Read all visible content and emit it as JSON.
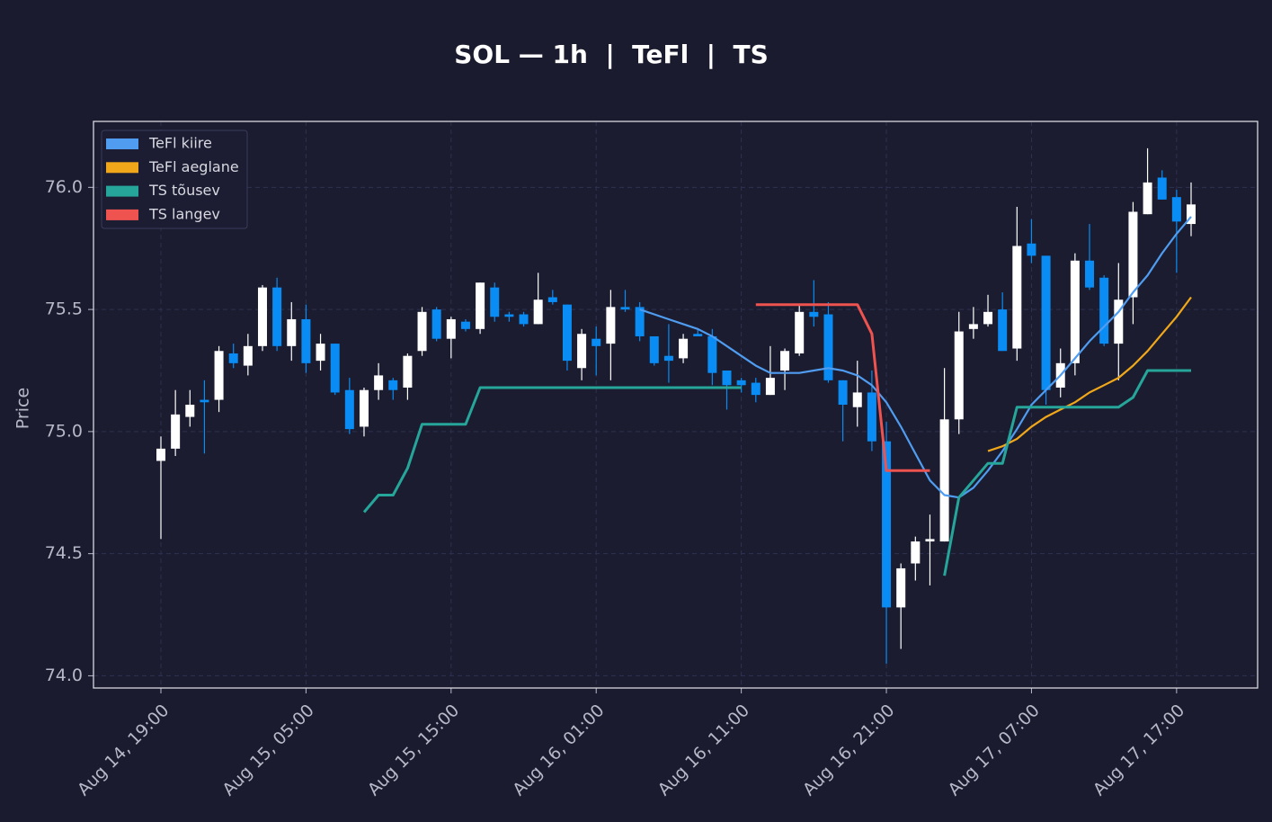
{
  "chart_data": {
    "type": "candlestick",
    "title": "SOL — 1h  |  TeFl  |  TS",
    "ylabel": "Price",
    "x": [
      "Aug 14, 19:00",
      "Aug 14, 20:00",
      "Aug 14, 21:00",
      "Aug 14, 22:00",
      "Aug 14, 23:00",
      "Aug 15, 00:00",
      "Aug 15, 01:00",
      "Aug 15, 02:00",
      "Aug 15, 03:00",
      "Aug 15, 04:00",
      "Aug 15, 05:00",
      "Aug 15, 06:00",
      "Aug 15, 07:00",
      "Aug 15, 08:00",
      "Aug 15, 09:00",
      "Aug 15, 10:00",
      "Aug 15, 11:00",
      "Aug 15, 12:00",
      "Aug 15, 13:00",
      "Aug 15, 14:00",
      "Aug 15, 15:00",
      "Aug 15, 16:00",
      "Aug 15, 17:00",
      "Aug 15, 18:00",
      "Aug 15, 19:00",
      "Aug 15, 20:00",
      "Aug 15, 21:00",
      "Aug 15, 22:00",
      "Aug 15, 23:00",
      "Aug 16, 00:00",
      "Aug 16, 01:00",
      "Aug 16, 02:00",
      "Aug 16, 03:00",
      "Aug 16, 04:00",
      "Aug 16, 05:00",
      "Aug 16, 06:00",
      "Aug 16, 07:00",
      "Aug 16, 08:00",
      "Aug 16, 09:00",
      "Aug 16, 10:00",
      "Aug 16, 11:00",
      "Aug 16, 12:00",
      "Aug 16, 13:00",
      "Aug 16, 14:00",
      "Aug 16, 15:00",
      "Aug 16, 16:00",
      "Aug 16, 17:00",
      "Aug 16, 18:00",
      "Aug 16, 19:00",
      "Aug 16, 20:00",
      "Aug 16, 21:00",
      "Aug 16, 22:00",
      "Aug 16, 23:00",
      "Aug 17, 00:00",
      "Aug 17, 01:00",
      "Aug 17, 02:00",
      "Aug 17, 03:00",
      "Aug 17, 04:00",
      "Aug 17, 05:00",
      "Aug 17, 06:00",
      "Aug 17, 07:00",
      "Aug 17, 08:00",
      "Aug 17, 09:00",
      "Aug 17, 10:00",
      "Aug 17, 11:00",
      "Aug 17, 12:00",
      "Aug 17, 13:00",
      "Aug 17, 14:00",
      "Aug 17, 15:00",
      "Aug 17, 16:00",
      "Aug 17, 17:00",
      "Aug 17, 18:00"
    ],
    "open": [
      74.88,
      74.93,
      75.06,
      75.13,
      75.13,
      75.32,
      75.27,
      75.35,
      75.59,
      75.35,
      75.46,
      75.29,
      75.36,
      75.17,
      75.02,
      75.17,
      75.21,
      75.18,
      75.33,
      75.5,
      75.38,
      75.45,
      75.42,
      75.59,
      75.48,
      75.48,
      75.44,
      75.55,
      75.52,
      75.26,
      75.38,
      75.36,
      75.51,
      75.51,
      75.39,
      75.31,
      75.3,
      75.4,
      75.39,
      75.25,
      75.21,
      75.2,
      75.15,
      75.25,
      75.32,
      75.49,
      75.48,
      75.21,
      75.1,
      75.16,
      74.96,
      74.28,
      74.46,
      74.55,
      74.55,
      75.05,
      75.42,
      75.44,
      75.5,
      75.34,
      75.77,
      75.72,
      75.18,
      75.28,
      75.7,
      75.63,
      75.36,
      75.55,
      75.89,
      76.04,
      75.96,
      75.85
    ],
    "high": [
      74.98,
      75.17,
      75.17,
      75.21,
      75.35,
      75.36,
      75.4,
      75.6,
      75.63,
      75.53,
      75.52,
      75.4,
      75.36,
      75.22,
      75.18,
      75.28,
      75.22,
      75.32,
      75.51,
      75.51,
      75.47,
      75.46,
      75.61,
      75.61,
      75.49,
      75.49,
      75.65,
      75.58,
      75.52,
      75.42,
      75.43,
      75.58,
      75.58,
      75.53,
      75.39,
      75.44,
      75.4,
      75.42,
      75.42,
      75.25,
      75.22,
      75.22,
      75.35,
      75.34,
      75.52,
      75.62,
      75.53,
      75.21,
      75.29,
      75.25,
      75.04,
      74.46,
      74.57,
      74.66,
      75.26,
      75.49,
      75.51,
      75.56,
      75.57,
      75.92,
      75.87,
      75.72,
      75.34,
      75.73,
      75.85,
      75.64,
      75.69,
      75.94,
      76.16,
      76.07,
      75.99,
      76.02
    ],
    "low": [
      74.56,
      74.9,
      75.02,
      74.91,
      75.08,
      75.26,
      75.23,
      75.33,
      75.33,
      75.29,
      75.24,
      75.25,
      75.15,
      74.99,
      74.98,
      75.13,
      75.13,
      75.13,
      75.31,
      75.37,
      75.3,
      75.41,
      75.4,
      75.45,
      75.45,
      75.43,
      75.44,
      75.52,
      75.25,
      75.21,
      75.23,
      75.21,
      75.49,
      75.37,
      75.27,
      75.2,
      75.28,
      75.39,
      75.19,
      75.09,
      75.16,
      75.12,
      75.15,
      75.17,
      75.31,
      75.43,
      75.2,
      74.96,
      75.02,
      74.92,
      74.05,
      74.11,
      74.39,
      74.37,
      74.55,
      74.99,
      75.38,
      75.43,
      75.33,
      75.29,
      75.69,
      75.11,
      75.14,
      75.23,
      75.58,
      75.35,
      75.21,
      75.44,
      75.89,
      75.95,
      75.65,
      75.8
    ],
    "close": [
      74.93,
      75.07,
      75.11,
      75.12,
      75.33,
      75.28,
      75.35,
      75.59,
      75.35,
      75.46,
      75.28,
      75.36,
      75.16,
      75.01,
      75.17,
      75.23,
      75.17,
      75.31,
      75.49,
      75.38,
      75.46,
      75.42,
      75.61,
      75.47,
      75.47,
      75.44,
      75.54,
      75.53,
      75.29,
      75.4,
      75.35,
      75.51,
      75.5,
      75.39,
      75.28,
      75.29,
      75.38,
      75.39,
      75.24,
      75.19,
      75.19,
      75.15,
      75.22,
      75.33,
      75.49,
      75.47,
      75.21,
      75.11,
      75.16,
      74.96,
      74.28,
      74.44,
      74.55,
      74.56,
      75.05,
      75.41,
      75.44,
      75.49,
      75.33,
      75.76,
      75.72,
      75.17,
      75.28,
      75.7,
      75.59,
      75.36,
      75.54,
      75.9,
      76.02,
      75.95,
      75.86,
      75.93
    ],
    "up_color": "#ffffff",
    "down_color": "#0a8cf5",
    "series": [
      {
        "name": "TeFl kiire",
        "color": "#4f9cf0",
        "values": [
          null,
          null,
          null,
          null,
          null,
          null,
          null,
          null,
          null,
          null,
          null,
          null,
          null,
          null,
          null,
          null,
          null,
          null,
          null,
          null,
          null,
          null,
          null,
          null,
          null,
          null,
          null,
          null,
          null,
          null,
          null,
          null,
          null,
          75.5,
          75.48,
          75.46,
          75.44,
          75.42,
          75.39,
          75.35,
          75.31,
          75.27,
          75.24,
          75.24,
          75.24,
          75.25,
          75.26,
          75.25,
          75.23,
          75.19,
          75.12,
          75.02,
          74.91,
          74.8,
          74.74,
          74.73,
          74.77,
          74.84,
          74.92,
          75.01,
          75.11,
          75.17,
          75.23,
          75.3,
          75.37,
          75.43,
          75.49,
          75.57,
          75.64,
          75.73,
          75.81,
          75.88
        ]
      },
      {
        "name": "TeFl aeglane",
        "color": "#f0a81a",
        "values": [
          null,
          null,
          null,
          null,
          null,
          null,
          null,
          null,
          null,
          null,
          null,
          null,
          null,
          null,
          null,
          null,
          null,
          null,
          null,
          null,
          null,
          null,
          null,
          null,
          null,
          null,
          null,
          null,
          null,
          null,
          null,
          null,
          null,
          null,
          null,
          null,
          null,
          null,
          null,
          null,
          null,
          null,
          null,
          null,
          null,
          null,
          null,
          null,
          null,
          null,
          null,
          null,
          null,
          null,
          null,
          null,
          null,
          74.92,
          74.94,
          74.97,
          75.02,
          75.06,
          75.09,
          75.12,
          75.16,
          75.19,
          75.22,
          75.27,
          75.33,
          75.4,
          75.47,
          75.55
        ]
      },
      {
        "name": "TS tõusev",
        "color": "#26a69a",
        "values": [
          null,
          null,
          null,
          null,
          null,
          null,
          null,
          null,
          null,
          null,
          null,
          null,
          null,
          null,
          74.67,
          74.74,
          74.74,
          74.85,
          75.03,
          75.03,
          75.03,
          75.03,
          75.18,
          75.18,
          75.18,
          75.18,
          75.18,
          75.18,
          75.18,
          75.18,
          75.18,
          75.18,
          75.18,
          75.18,
          75.18,
          75.18,
          75.18,
          75.18,
          75.18,
          75.18,
          75.18,
          null,
          null,
          null,
          null,
          null,
          null,
          null,
          null,
          null,
          null,
          null,
          null,
          null,
          74.41,
          74.73,
          74.8,
          74.87,
          74.87,
          75.1,
          75.1,
          75.1,
          75.1,
          75.1,
          75.1,
          75.1,
          75.1,
          75.14,
          75.25,
          75.25,
          75.25,
          75.25
        ]
      },
      {
        "name": "TS langev",
        "color": "#ef5350",
        "values": [
          null,
          null,
          null,
          null,
          null,
          null,
          null,
          null,
          null,
          null,
          null,
          null,
          null,
          null,
          null,
          null,
          null,
          null,
          null,
          null,
          null,
          null,
          null,
          null,
          null,
          null,
          null,
          null,
          null,
          null,
          null,
          null,
          null,
          null,
          null,
          null,
          null,
          null,
          null,
          null,
          null,
          75.52,
          75.52,
          75.52,
          75.52,
          75.52,
          75.52,
          75.52,
          75.52,
          75.4,
          74.84,
          74.84,
          74.84,
          74.84,
          null,
          null,
          null,
          null,
          null,
          null,
          null,
          null,
          null,
          null,
          null,
          null,
          null,
          null,
          null,
          null,
          null,
          null
        ]
      }
    ],
    "ylim": [
      73.95,
      76.27
    ],
    "yticks": [
      {
        "value": 74,
        "label": "74.0"
      },
      74.5,
      {
        "value": 75,
        "label": "75.0"
      },
      75.5,
      {
        "value": 76,
        "label": "76.0"
      }
    ],
    "xticks": [
      "Aug 14, 19:00",
      "Aug 15, 05:00",
      "Aug 15, 15:00",
      "Aug 16, 01:00",
      "Aug 16, 11:00",
      "Aug 16, 21:00",
      "Aug 17, 07:00",
      "Aug 17, 17:00"
    ],
    "grid": true,
    "legend": "upper left"
  }
}
